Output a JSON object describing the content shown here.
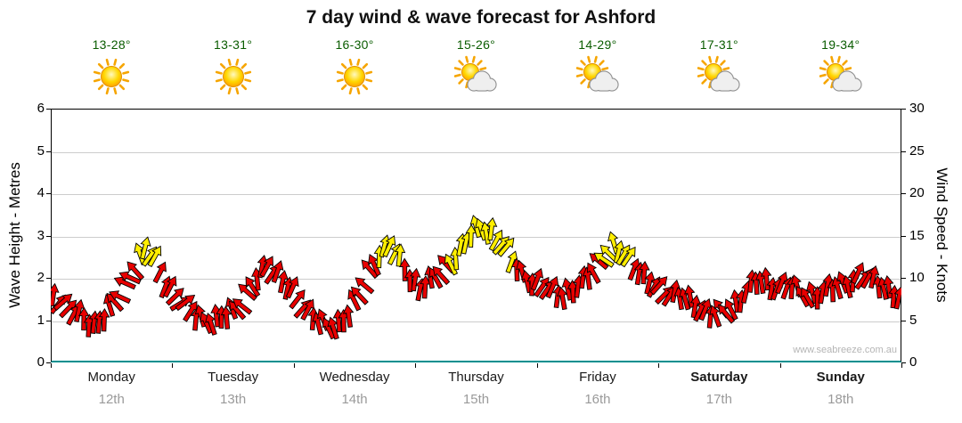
{
  "watermark": "www.seabreeze.com.au",
  "days": [
    {
      "name": "Monday",
      "date": "12th",
      "temp": "13-28°",
      "icon": "sunny",
      "bold": false
    },
    {
      "name": "Tuesday",
      "date": "13th",
      "temp": "13-31°",
      "icon": "sunny",
      "bold": false
    },
    {
      "name": "Wednesday",
      "date": "14th",
      "temp": "16-30°",
      "icon": "sunny",
      "bold": false
    },
    {
      "name": "Thursday",
      "date": "15th",
      "temp": "15-26°",
      "icon": "partly-cloudy",
      "bold": false
    },
    {
      "name": "Friday",
      "date": "16th",
      "temp": "14-29°",
      "icon": "partly-cloudy",
      "bold": false
    },
    {
      "name": "Saturday",
      "date": "17th",
      "temp": "17-31°",
      "icon": "partly-cloudy",
      "bold": true
    },
    {
      "name": "Sunday",
      "date": "18th",
      "temp": "19-34°",
      "icon": "partly-cloudy",
      "bold": true
    }
  ],
  "chart_data": {
    "type": "line",
    "title": "7 day wind & wave forecast for Ashford",
    "marker": "wind-arrow",
    "categories_days": [
      "Monday 12th",
      "Tuesday 13th",
      "Wednesday 14th",
      "Thursday 15th",
      "Friday 16th",
      "Saturday 17th",
      "Sunday 18th"
    ],
    "interval_hours": 2,
    "y_left": {
      "label": "Wave Height - Metres",
      "range": [
        0,
        6
      ],
      "ticks": [
        0,
        1,
        2,
        3,
        4,
        5,
        6
      ]
    },
    "y_right": {
      "label": "Wind Speed - Knots",
      "range": [
        0,
        30
      ],
      "ticks": [
        0,
        5,
        10,
        15,
        20,
        25,
        30
      ]
    },
    "grid": "horizontal",
    "legend": "none",
    "colors": {
      "normal": "#e80000",
      "strong": "#ffee00"
    },
    "color_threshold_knots": 12,
    "values_knots": [
      8,
      7,
      6,
      5,
      4.5,
      5.5,
      7,
      9,
      11.5,
      13.5,
      12,
      9.5,
      8,
      6.5,
      5.5,
      5,
      5,
      5.5,
      6.5,
      8,
      10,
      11.5,
      10.5,
      9,
      7.5,
      6,
      5,
      4,
      4.5,
      6,
      8,
      10.5,
      13,
      14,
      12,
      10,
      9,
      9.5,
      10.5,
      12,
      13.5,
      15,
      16,
      15.5,
      14,
      12,
      10.5,
      9.5,
      9,
      8.5,
      8,
      8.5,
      9.5,
      11,
      12.5,
      13.5,
      13,
      11.5,
      10,
      9,
      8.5,
      8,
      7.5,
      7,
      6,
      5.5,
      6,
      7,
      8.5,
      9.5,
      9.5,
      9,
      9,
      8.5,
      8,
      8,
      8.5,
      9,
      9.5,
      10,
      10,
      9.5,
      8.5,
      7.5
    ]
  }
}
